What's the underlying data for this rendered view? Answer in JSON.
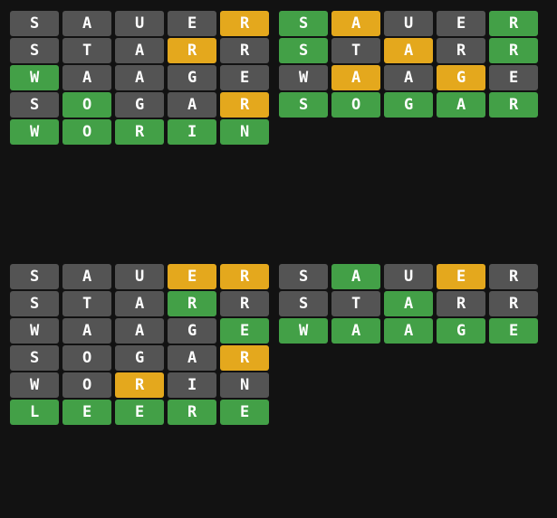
{
  "colors": {
    "background": "#121212",
    "absent": "#545454",
    "present": "#e4a81d",
    "correct": "#43a047",
    "text": "#ffffff"
  },
  "boards": [
    {
      "rows": [
        {
          "word": "SAUER",
          "states": "xxxxy"
        },
        {
          "word": "STARR",
          "states": "xxxyx"
        },
        {
          "word": "WAAGE",
          "states": "gxxxx"
        },
        {
          "word": "SOGAR",
          "states": "xgxxy"
        },
        {
          "word": "WORIN",
          "states": "ggggg"
        }
      ]
    },
    {
      "rows": [
        {
          "word": "SAUER",
          "states": "gyxxg"
        },
        {
          "word": "STARR",
          "states": "gxyxg"
        },
        {
          "word": "WAAGE",
          "states": "xyxyx"
        },
        {
          "word": "SOGAR",
          "states": "ggggg"
        }
      ]
    },
    {
      "rows": [
        {
          "word": "SAUER",
          "states": "xxxyy"
        },
        {
          "word": "STARR",
          "states": "xxxgx"
        },
        {
          "word": "WAAGE",
          "states": "xxxxg"
        },
        {
          "word": "SOGAR",
          "states": "xxxxy"
        },
        {
          "word": "WORIN",
          "states": "xxyxx"
        },
        {
          "word": "LEERE",
          "states": "ggggg"
        }
      ]
    },
    {
      "rows": [
        {
          "word": "SAUER",
          "states": "xgxyx"
        },
        {
          "word": "STARR",
          "states": "xxgxx"
        },
        {
          "word": "WAAGE",
          "states": "ggggg"
        }
      ]
    }
  ]
}
